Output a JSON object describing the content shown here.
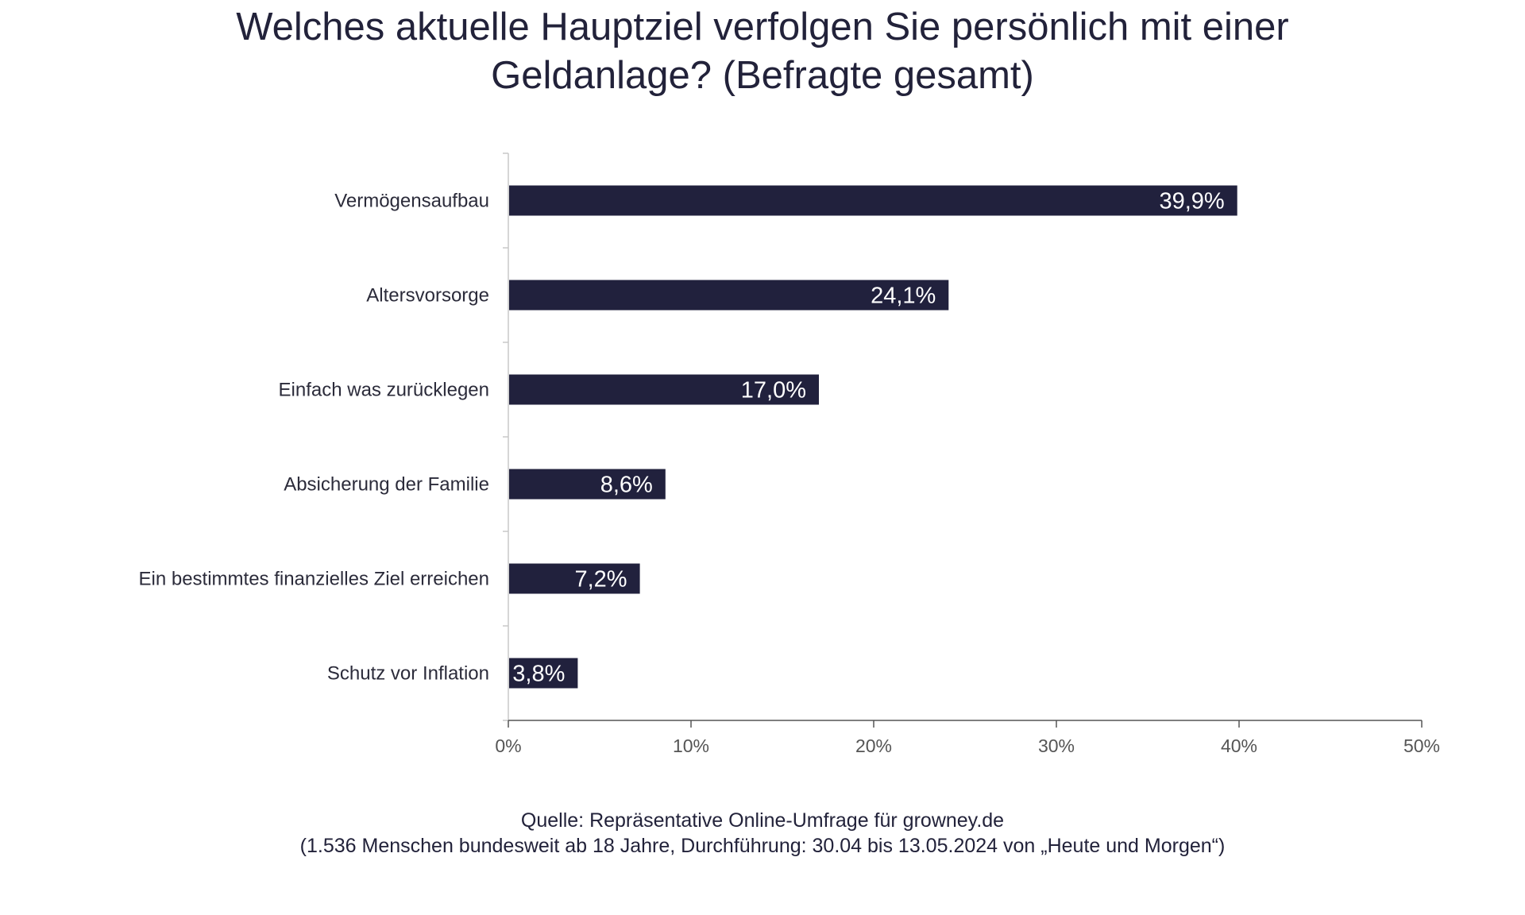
{
  "chart_data": {
    "type": "bar",
    "orientation": "horizontal",
    "title_lines": [
      "Welches aktuelle Hauptziel verfolgen Sie persönlich mit einer",
      "Geldanlage? (Befragte gesamt)"
    ],
    "categories": [
      "Vermögensaufbau",
      "Altersvorsorge",
      "Einfach was zurücklegen",
      "Absicherung der Familie",
      "Ein bestimmtes finanzielles Ziel erreichen",
      "Schutz vor Inflation"
    ],
    "values": [
      39.9,
      24.1,
      17.0,
      8.6,
      7.2,
      3.8
    ],
    "data_labels": [
      "39,9%",
      "24,1%",
      "17,0%",
      "8,6%",
      "7,2%",
      "3,8%"
    ],
    "xlim": [
      0,
      50
    ],
    "x_ticks": [
      0,
      10,
      20,
      30,
      40,
      50
    ],
    "x_tick_labels": [
      "0%",
      "10%",
      "20%",
      "30%",
      "40%",
      "50%"
    ],
    "grid": false,
    "legend": "none",
    "bar_color": "#21213d",
    "label_color": "#ffffff",
    "axis_color": "#c8c8c8",
    "source_lines": [
      "Quelle: Repräsentative Online-Umfrage für growney.de",
      "(1.536 Menschen bundesweit ab 18 Jahre, Durchführung: 30.04 bis 13.05.2024 von „Heute und Morgen“)"
    ]
  }
}
